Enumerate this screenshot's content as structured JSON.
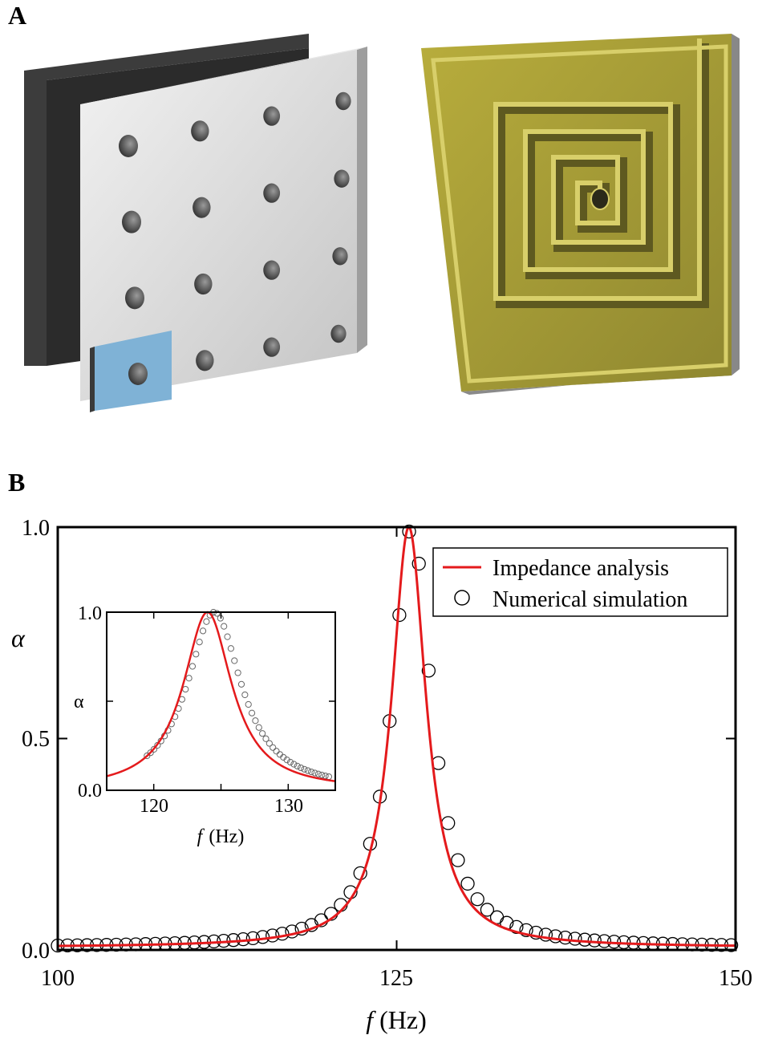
{
  "panels": {
    "a_label": "A",
    "b_label": "B"
  },
  "colors": {
    "impedance_line": "#e41a1c",
    "simulation_marker": "#000000",
    "panel_plate": "#d9d9d9",
    "backing_plate": "#2b2b2b",
    "unit_cell": "#7fb2d6",
    "spiral_body": "#a39a2f",
    "spiral_wall": "#d8cf6a"
  },
  "legend": {
    "impedance": "Impedance analysis",
    "simulation": "Numerical simulation"
  },
  "chart_data": [
    {
      "type": "line",
      "xlabel_symbol": "f",
      "xlabel_unit": "(Hz)",
      "ylabel": "α",
      "xlim": [
        100,
        150
      ],
      "ylim": [
        0,
        1
      ],
      "x_ticks": [
        "100",
        "125",
        "150"
      ],
      "y_ticks": [
        "0.0",
        "0.5",
        "1.0"
      ],
      "legend_position": "top-right",
      "series": [
        {
          "name": "Impedance analysis",
          "style": "line",
          "model": {
            "f0": 125.9,
            "half_width": 1.55,
            "tail": 0.006
          }
        },
        {
          "name": "Numerical simulation",
          "style": "open-circle",
          "model": {
            "f0": 126.1,
            "half_width": 1.75,
            "tail": 0.006
          },
          "x_start": 100,
          "x_end": 150,
          "step": 0.72
        }
      ]
    },
    {
      "type": "line",
      "inset": true,
      "xlabel_symbol": "f",
      "xlabel_unit": "(Hz)",
      "ylabel": "α",
      "xlim": [
        116.5,
        133.5
      ],
      "ylim": [
        0,
        1
      ],
      "x_ticks": [
        "120",
        "130"
      ],
      "y_ticks": [
        "0.0",
        "1.0"
      ],
      "series": [
        {
          "name": "Impedance analysis",
          "style": "line",
          "model": {
            "f0": 124.0,
            "half_width": 2.2,
            "tail": 0.0
          }
        },
        {
          "name": "Numerical simulation",
          "style": "open-circle",
          "model": {
            "f0": 124.5,
            "half_width": 2.45,
            "tail": 0.0
          },
          "x_start": 119.5,
          "x_end": 133.2,
          "step": 0.26
        }
      ]
    }
  ]
}
